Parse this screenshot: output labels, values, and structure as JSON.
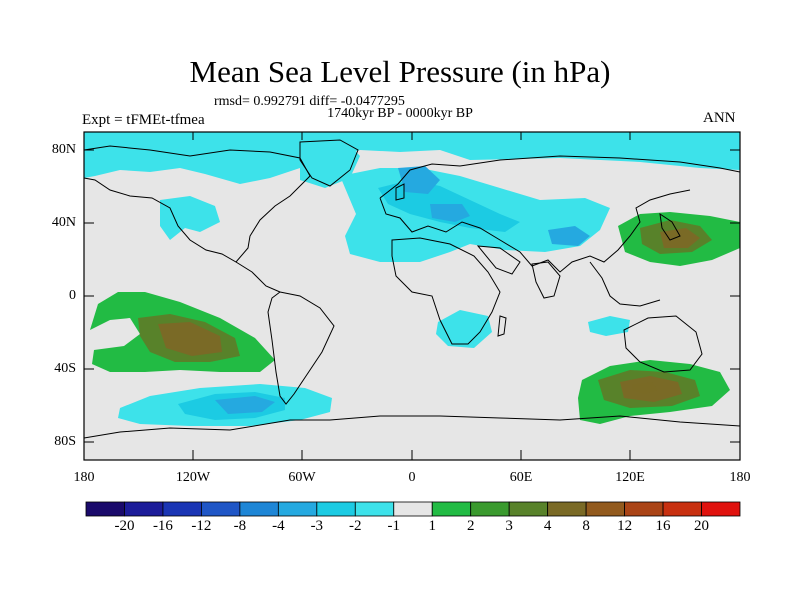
{
  "title": "Mean Sea Level Pressure (in hPa)",
  "stats_line": "rmsd= 0.992791 diff= -0.0477295",
  "period": "1740kyr BP - 0000kyr BP",
  "experiment": "Expt = tFMEt-tfmea",
  "season": "ANN",
  "lat_labels": [
    "80N",
    "40N",
    "0",
    "40S",
    "80S"
  ],
  "lon_labels": [
    "180",
    "120W",
    "60W",
    "0",
    "60E",
    "120E",
    "180"
  ],
  "colorbar": {
    "labels": [
      "-20",
      "-16",
      "-12",
      "-8",
      "-4",
      "-3",
      "-2",
      "-1",
      "1",
      "2",
      "3",
      "4",
      "8",
      "12",
      "16",
      "20"
    ],
    "colors": [
      "#1a0a6b",
      "#1c1c99",
      "#1a35b4",
      "#1f56c6",
      "#1e86d6",
      "#25a9e0",
      "#1ccbe3",
      "#3de2ea",
      "#e6e6e6",
      "#22bb44",
      "#3a9a2e",
      "#58822a",
      "#7a6a26",
      "#925a1e",
      "#aa4416",
      "#c83010",
      "#e0120e"
    ]
  },
  "map_colors": {
    "ocean_background": "#e6e6e6",
    "neg_1": "#3de2ea",
    "neg_2": "#1ccbe3",
    "neg_3": "#25a9e0",
    "pos_1": "#22bb44",
    "pos_2": "#3a9a2e",
    "pos_3": "#58822a",
    "pos_4": "#7a6a26"
  }
}
